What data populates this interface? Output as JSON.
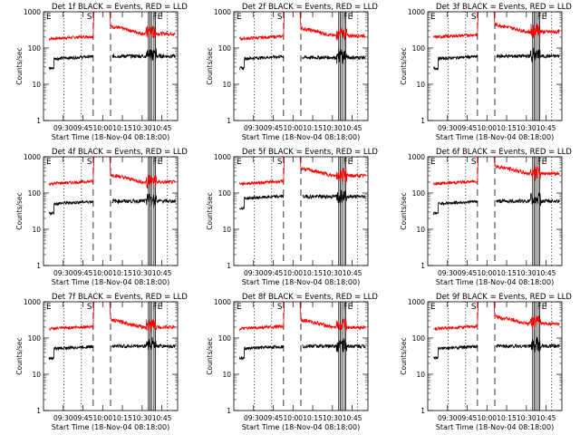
{
  "common": {
    "ylabel": "Counts/sec",
    "xlabel": "Start Time (18-Nov-04 08:18:00)",
    "xticks": [
      "09:30",
      "09:45",
      "10:00",
      "10:15",
      "10:30",
      "10:45"
    ],
    "yticks": [
      "1",
      "10",
      "100",
      "1000"
    ],
    "flags": {
      "E": "E",
      "S": "S",
      "F": "F"
    }
  },
  "colors": {
    "events": "#000000",
    "lld": "#ff0000",
    "axis": "#000000"
  },
  "chart_data": [
    {
      "type": "line",
      "title": "Det 1f BLACK = Events, RED = LLD",
      "xlim": [
        9.25,
        10.95
      ],
      "ylim": [
        1,
        1000
      ],
      "yscale": "log",
      "series": [
        {
          "name": "Events",
          "color": "black",
          "level_before": 50,
          "level_after": 60
        },
        {
          "name": "LLD",
          "color": "red",
          "level_before": 180,
          "level_after": 250
        }
      ]
    },
    {
      "type": "line",
      "title": "Det 2f BLACK = Events, RED = LLD",
      "xlim": [
        9.25,
        10.95
      ],
      "ylim": [
        1,
        1000
      ],
      "yscale": "log",
      "series": [
        {
          "name": "Events",
          "color": "black",
          "level_before": 50,
          "level_after": 55
        },
        {
          "name": "LLD",
          "color": "red",
          "level_before": 180,
          "level_after": 220
        }
      ]
    },
    {
      "type": "line",
      "title": "Det 3f BLACK = Events, RED = LLD",
      "xlim": [
        9.25,
        10.95
      ],
      "ylim": [
        1,
        1000
      ],
      "yscale": "log",
      "series": [
        {
          "name": "Events",
          "color": "black",
          "level_before": 50,
          "level_after": 60
        },
        {
          "name": "LLD",
          "color": "red",
          "level_before": 200,
          "level_after": 280
        }
      ]
    },
    {
      "type": "line",
      "title": "Det 4f BLACK = Events, RED = LLD",
      "xlim": [
        9.25,
        10.95
      ],
      "ylim": [
        1,
        1000
      ],
      "yscale": "log",
      "series": [
        {
          "name": "Events",
          "color": "black",
          "level_before": 50,
          "level_after": 60
        },
        {
          "name": "LLD",
          "color": "red",
          "level_before": 180,
          "level_after": 200
        }
      ]
    },
    {
      "type": "line",
      "title": "Det 5f BLACK = Events, RED = LLD",
      "xlim": [
        9.25,
        10.95
      ],
      "ylim": [
        1,
        1000
      ],
      "yscale": "log",
      "series": [
        {
          "name": "Events",
          "color": "black",
          "level_before": 70,
          "level_after": 80
        },
        {
          "name": "LLD",
          "color": "red",
          "level_before": 180,
          "level_after": 300
        }
      ]
    },
    {
      "type": "line",
      "title": "Det 6f BLACK = Events, RED = LLD",
      "xlim": [
        9.25,
        10.95
      ],
      "ylim": [
        1,
        1000
      ],
      "yscale": "log",
      "series": [
        {
          "name": "Events",
          "color": "black",
          "level_before": 50,
          "level_after": 60
        },
        {
          "name": "LLD",
          "color": "red",
          "level_before": 180,
          "level_after": 350
        }
      ]
    },
    {
      "type": "line",
      "title": "Det 7f BLACK = Events, RED = LLD",
      "xlim": [
        9.25,
        10.95
      ],
      "ylim": [
        1,
        1000
      ],
      "yscale": "log",
      "series": [
        {
          "name": "Events",
          "color": "black",
          "level_before": 50,
          "level_after": 60
        },
        {
          "name": "LLD",
          "color": "red",
          "level_before": 180,
          "level_after": 200
        }
      ]
    },
    {
      "type": "line",
      "title": "Det 8f BLACK = Events, RED = LLD",
      "xlim": [
        9.25,
        10.95
      ],
      "ylim": [
        1,
        1000
      ],
      "yscale": "log",
      "series": [
        {
          "name": "Events",
          "color": "black",
          "level_before": 50,
          "level_after": 60
        },
        {
          "name": "LLD",
          "color": "red",
          "level_before": 180,
          "level_after": 200
        }
      ]
    },
    {
      "type": "line",
      "title": "Det 9f BLACK = Events, RED = LLD",
      "xlim": [
        9.25,
        10.95
      ],
      "ylim": [
        1,
        1000
      ],
      "yscale": "log",
      "series": [
        {
          "name": "Events",
          "color": "black",
          "level_before": 50,
          "level_after": 60
        },
        {
          "name": "LLD",
          "color": "red",
          "level_before": 180,
          "level_after": 250
        }
      ]
    }
  ]
}
